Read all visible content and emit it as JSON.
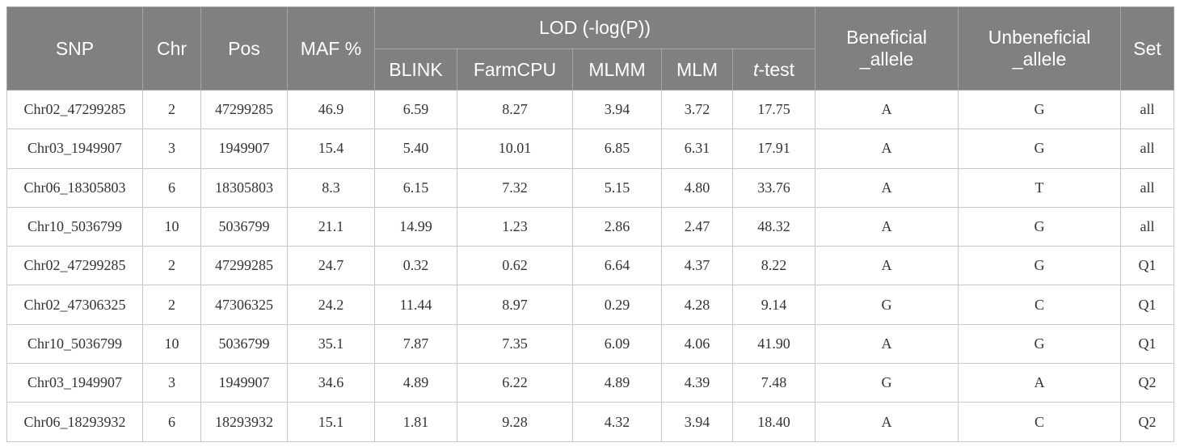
{
  "table": {
    "header": [
      "SNP",
      "Chr",
      "Pos",
      "MAF %",
      "LOD (-log(P))",
      "Beneficial\n_allele",
      "Unbeneficial\n_allele",
      "Set"
    ],
    "subheader": [
      "BLINK",
      "FarmCPU",
      "MLMM",
      "MLM",
      "t-test"
    ],
    "rows": [
      [
        "Chr02_47299285",
        "2",
        "47299285",
        "46.9",
        "6.59",
        "8.27",
        "3.94",
        "3.72",
        "17.75",
        "A",
        "G",
        "all"
      ],
      [
        "Chr03_1949907",
        "3",
        "1949907",
        "15.4",
        "5.40",
        "10.01",
        "6.85",
        "6.31",
        "17.91",
        "A",
        "G",
        "all"
      ],
      [
        "Chr06_18305803",
        "6",
        "18305803",
        "8.3",
        "6.15",
        "7.32",
        "5.15",
        "4.80",
        "33.76",
        "A",
        "T",
        "all"
      ],
      [
        "Chr10_5036799",
        "10",
        "5036799",
        "21.1",
        "14.99",
        "1.23",
        "2.86",
        "2.47",
        "48.32",
        "A",
        "G",
        "all"
      ],
      [
        "Chr02_47299285",
        "2",
        "47299285",
        "24.7",
        "0.32",
        "0.62",
        "6.64",
        "4.37",
        "8.22",
        "A",
        "G",
        "Q1"
      ],
      [
        "Chr02_47306325",
        "2",
        "47306325",
        "24.2",
        "11.44",
        "8.97",
        "0.29",
        "4.28",
        "9.14",
        "G",
        "C",
        "Q1"
      ],
      [
        "Chr10_5036799",
        "10",
        "5036799",
        "35.1",
        "7.87",
        "7.35",
        "6.09",
        "4.06",
        "41.90",
        "A",
        "G",
        "Q1"
      ],
      [
        "Chr03_1949907",
        "3",
        "1949907",
        "34.6",
        "4.89",
        "6.22",
        "4.89",
        "4.39",
        "7.48",
        "G",
        "A",
        "Q2"
      ],
      [
        "Chr06_18293932",
        "6",
        "18293932",
        "15.1",
        "1.81",
        "9.28",
        "4.32",
        "3.94",
        "18.40",
        "A",
        "C",
        "Q2"
      ]
    ]
  }
}
